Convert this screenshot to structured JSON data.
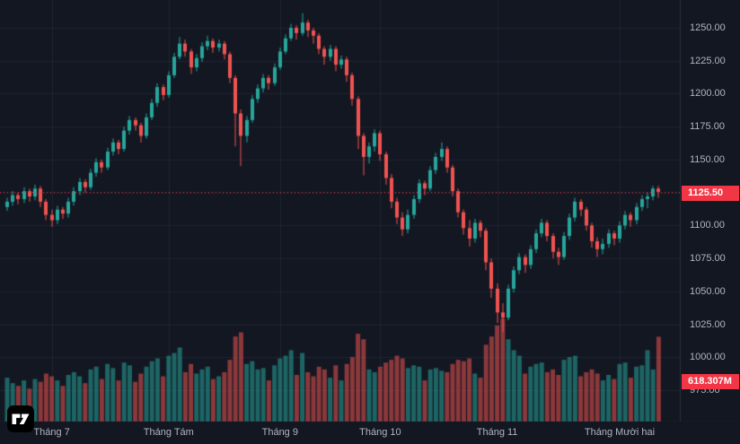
{
  "chart_data": {
    "type": "candlestick_with_volume",
    "ohlcv_format": [
      "open",
      "high",
      "low",
      "close",
      "volume_millions"
    ],
    "last_price": 1125.5,
    "last_price_label": "1125.50",
    "last_volume_label": "618.307M",
    "ylim": [
      1019,
      1261
    ],
    "y_ticks": [
      {
        "v": 1250,
        "label": "1250.00"
      },
      {
        "v": 1225,
        "label": "1225.00"
      },
      {
        "v": 1200,
        "label": "1200.00"
      },
      {
        "v": 1175,
        "label": "1175.00"
      },
      {
        "v": 1150,
        "label": "1150.00"
      },
      {
        "v": 1125,
        "label": "1125.00"
      },
      {
        "v": 1100,
        "label": "1100.00"
      },
      {
        "v": 1075,
        "label": "1075.00"
      },
      {
        "v": 1050,
        "label": "1050.00"
      },
      {
        "v": 1025,
        "label": "1025.00"
      },
      {
        "v": 1000,
        "label": "1000.00"
      },
      {
        "v": 975,
        "label": "975.00"
      }
    ],
    "x_ticks": [
      {
        "index": 8,
        "label": "Tháng 7"
      },
      {
        "index": 29,
        "label": "Tháng Tám"
      },
      {
        "index": 49,
        "label": "Tháng 9"
      },
      {
        "index": 67,
        "label": "Tháng 10"
      },
      {
        "index": 88,
        "label": "Tháng 11"
      },
      {
        "index": 110,
        "label": "Tháng Mười hai"
      }
    ],
    "candles": [
      [
        1114,
        1121,
        1111,
        1118,
        320
      ],
      [
        1118,
        1126,
        1115,
        1123,
        280
      ],
      [
        1123,
        1125,
        1116,
        1120,
        260
      ],
      [
        1120,
        1129,
        1117,
        1126,
        300
      ],
      [
        1126,
        1128,
        1118,
        1122,
        240
      ],
      [
        1122,
        1131,
        1119,
        1128,
        310
      ],
      [
        1128,
        1130,
        1114,
        1118,
        290
      ],
      [
        1118,
        1120,
        1104,
        1108,
        350
      ],
      [
        1108,
        1112,
        1099,
        1104,
        330
      ],
      [
        1104,
        1115,
        1101,
        1112,
        300
      ],
      [
        1112,
        1114,
        1105,
        1109,
        260
      ],
      [
        1109,
        1121,
        1106,
        1118,
        340
      ],
      [
        1118,
        1129,
        1115,
        1126,
        360
      ],
      [
        1126,
        1136,
        1123,
        1133,
        330
      ],
      [
        1133,
        1135,
        1125,
        1129,
        280
      ],
      [
        1129,
        1143,
        1127,
        1140,
        380
      ],
      [
        1140,
        1151,
        1137,
        1148,
        400
      ],
      [
        1148,
        1150,
        1140,
        1144,
        310
      ],
      [
        1144,
        1159,
        1142,
        1156,
        420
      ],
      [
        1156,
        1166,
        1153,
        1163,
        390
      ],
      [
        1163,
        1165,
        1154,
        1158,
        300
      ],
      [
        1158,
        1175,
        1156,
        1172,
        430
      ],
      [
        1172,
        1183,
        1169,
        1180,
        410
      ],
      [
        1180,
        1182,
        1172,
        1176,
        290
      ],
      [
        1176,
        1178,
        1163,
        1168,
        350
      ],
      [
        1168,
        1185,
        1166,
        1182,
        400
      ],
      [
        1182,
        1196,
        1180,
        1193,
        440
      ],
      [
        1193,
        1208,
        1190,
        1205,
        460
      ],
      [
        1205,
        1207,
        1195,
        1199,
        330
      ],
      [
        1199,
        1217,
        1197,
        1214,
        480
      ],
      [
        1214,
        1231,
        1212,
        1228,
        500
      ],
      [
        1228,
        1243,
        1226,
        1238,
        540
      ],
      [
        1238,
        1241,
        1228,
        1232,
        360
      ],
      [
        1232,
        1234,
        1215,
        1220,
        420
      ],
      [
        1220,
        1230,
        1217,
        1227,
        350
      ],
      [
        1227,
        1239,
        1224,
        1236,
        380
      ],
      [
        1236,
        1244,
        1233,
        1240,
        400
      ],
      [
        1240,
        1242,
        1231,
        1235,
        310
      ],
      [
        1235,
        1241,
        1232,
        1238,
        330
      ],
      [
        1238,
        1240,
        1226,
        1230,
        360
      ],
      [
        1230,
        1232,
        1208,
        1212,
        450
      ],
      [
        1212,
        1214,
        1160,
        1185,
        620
      ],
      [
        1185,
        1188,
        1145,
        1168,
        650
      ],
      [
        1168,
        1183,
        1163,
        1180,
        420
      ],
      [
        1180,
        1199,
        1178,
        1196,
        440
      ],
      [
        1196,
        1207,
        1193,
        1204,
        380
      ],
      [
        1204,
        1215,
        1201,
        1212,
        390
      ],
      [
        1212,
        1214,
        1203,
        1208,
        300
      ],
      [
        1208,
        1223,
        1206,
        1220,
        410
      ],
      [
        1220,
        1235,
        1218,
        1232,
        460
      ],
      [
        1232,
        1245,
        1230,
        1242,
        480
      ],
      [
        1242,
        1253,
        1240,
        1250,
        520
      ],
      [
        1250,
        1252,
        1241,
        1246,
        340
      ],
      [
        1246,
        1261,
        1244,
        1254,
        500
      ],
      [
        1254,
        1256,
        1243,
        1248,
        360
      ],
      [
        1248,
        1250,
        1238,
        1244,
        330
      ],
      [
        1244,
        1246,
        1230,
        1234,
        400
      ],
      [
        1234,
        1236,
        1222,
        1228,
        380
      ],
      [
        1228,
        1237,
        1225,
        1234,
        320
      ],
      [
        1234,
        1236,
        1217,
        1222,
        410
      ],
      [
        1222,
        1229,
        1219,
        1226,
        300
      ],
      [
        1226,
        1228,
        1209,
        1214,
        420
      ],
      [
        1214,
        1216,
        1191,
        1196,
        470
      ],
      [
        1196,
        1198,
        1158,
        1168,
        640
      ],
      [
        1168,
        1170,
        1138,
        1152,
        600
      ],
      [
        1152,
        1163,
        1147,
        1160,
        380
      ],
      [
        1160,
        1173,
        1156,
        1170,
        360
      ],
      [
        1170,
        1172,
        1149,
        1154,
        400
      ],
      [
        1154,
        1156,
        1131,
        1136,
        430
      ],
      [
        1136,
        1139,
        1113,
        1118,
        450
      ],
      [
        1118,
        1121,
        1101,
        1106,
        480
      ],
      [
        1106,
        1110,
        1092,
        1097,
        460
      ],
      [
        1097,
        1112,
        1094,
        1108,
        390
      ],
      [
        1108,
        1123,
        1105,
        1120,
        410
      ],
      [
        1120,
        1135,
        1117,
        1132,
        400
      ],
      [
        1132,
        1134,
        1123,
        1128,
        300
      ],
      [
        1128,
        1145,
        1126,
        1142,
        380
      ],
      [
        1142,
        1155,
        1139,
        1152,
        390
      ],
      [
        1152,
        1163,
        1149,
        1158,
        370
      ],
      [
        1158,
        1160,
        1140,
        1144,
        360
      ],
      [
        1144,
        1146,
        1122,
        1126,
        420
      ],
      [
        1126,
        1128,
        1106,
        1110,
        450
      ],
      [
        1110,
        1112,
        1093,
        1098,
        440
      ],
      [
        1098,
        1104,
        1084,
        1090,
        460
      ],
      [
        1090,
        1105,
        1087,
        1102,
        350
      ],
      [
        1102,
        1104,
        1091,
        1096,
        320
      ],
      [
        1096,
        1098,
        1066,
        1072,
        560
      ],
      [
        1072,
        1075,
        1045,
        1052,
        620
      ],
      [
        1052,
        1056,
        1026,
        1034,
        700
      ],
      [
        1034,
        1041,
        1019,
        1030,
        750
      ],
      [
        1030,
        1055,
        1028,
        1052,
        600
      ],
      [
        1052,
        1069,
        1049,
        1066,
        520
      ],
      [
        1066,
        1079,
        1063,
        1076,
        480
      ],
      [
        1076,
        1078,
        1064,
        1070,
        350
      ],
      [
        1070,
        1085,
        1067,
        1082,
        400
      ],
      [
        1082,
        1097,
        1079,
        1094,
        420
      ],
      [
        1094,
        1105,
        1091,
        1102,
        430
      ],
      [
        1102,
        1104,
        1088,
        1092,
        360
      ],
      [
        1092,
        1094,
        1075,
        1080,
        380
      ],
      [
        1080,
        1083,
        1070,
        1076,
        340
      ],
      [
        1076,
        1095,
        1074,
        1092,
        450
      ],
      [
        1092,
        1109,
        1089,
        1106,
        470
      ],
      [
        1106,
        1121,
        1103,
        1118,
        480
      ],
      [
        1118,
        1120,
        1107,
        1112,
        330
      ],
      [
        1112,
        1114,
        1096,
        1100,
        360
      ],
      [
        1100,
        1102,
        1083,
        1088,
        380
      ],
      [
        1088,
        1091,
        1076,
        1082,
        350
      ],
      [
        1082,
        1090,
        1078,
        1086,
        300
      ],
      [
        1086,
        1097,
        1083,
        1094,
        340
      ],
      [
        1094,
        1096,
        1085,
        1090,
        310
      ],
      [
        1090,
        1103,
        1087,
        1100,
        420
      ],
      [
        1100,
        1111,
        1097,
        1108,
        430
      ],
      [
        1108,
        1110,
        1099,
        1104,
        320
      ],
      [
        1104,
        1117,
        1101,
        1114,
        400
      ],
      [
        1114,
        1123,
        1111,
        1120,
        410
      ],
      [
        1120,
        1125,
        1113,
        1122,
        520
      ],
      [
        1122,
        1130,
        1119,
        1128,
        380
      ],
      [
        1128,
        1130,
        1121,
        1125.5,
        618.307
      ]
    ]
  },
  "colors": {
    "background": "#131722",
    "grid": "rgba(240,243,250,0.06)",
    "separator": "#2a2e39",
    "axis_text": "#b2b5be",
    "up": "#26a69a",
    "down": "#ef5350",
    "volume_up": "rgba(38,166,154,0.55)",
    "volume_down": "rgba(239,83,80,0.55)",
    "price_line": "#f23645",
    "badge": "#f23645"
  },
  "icons": {
    "logo": "tradingview-logo"
  }
}
